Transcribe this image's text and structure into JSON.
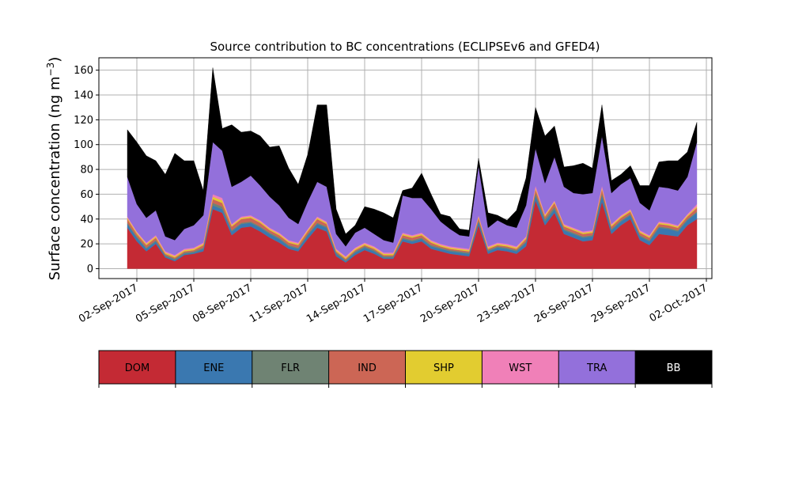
{
  "chart_data": {
    "type": "area",
    "stacked": true,
    "title": "Source contribution to BC concentrations (ECLIPSEv6 and GFED4)",
    "ylabel": "Surface concentration (ng m",
    "ylabel_sup": "−3",
    "ylabel_close": ")",
    "xlabel": "",
    "ylim": [
      -8,
      170
    ],
    "xlim": [
      "2017-08-31T00:00",
      "2017-10-02T07:00"
    ],
    "grid": true,
    "yticks": [
      0,
      20,
      40,
      60,
      80,
      100,
      120,
      140,
      160
    ],
    "xticks": [
      {
        "date": "2017-09-02",
        "label": "02-Sep-2017"
      },
      {
        "date": "2017-09-05",
        "label": "05-Sep-2017"
      },
      {
        "date": "2017-09-08",
        "label": "08-Sep-2017"
      },
      {
        "date": "2017-09-11",
        "label": "11-Sep-2017"
      },
      {
        "date": "2017-09-14",
        "label": "14-Sep-2017"
      },
      {
        "date": "2017-09-17",
        "label": "17-Sep-2017"
      },
      {
        "date": "2017-09-20",
        "label": "20-Sep-2017"
      },
      {
        "date": "2017-09-23",
        "label": "23-Sep-2017"
      },
      {
        "date": "2017-09-26",
        "label": "26-Sep-2017"
      },
      {
        "date": "2017-09-29",
        "label": "29-Sep-2017"
      },
      {
        "date": "2017-10-02",
        "label": "02-Oct-2017"
      }
    ],
    "x": [
      "2017-09-01T12:00",
      "2017-09-02T00:00",
      "2017-09-02T12:00",
      "2017-09-03T00:00",
      "2017-09-03T12:00",
      "2017-09-04T00:00",
      "2017-09-04T12:00",
      "2017-09-05T00:00",
      "2017-09-05T12:00",
      "2017-09-06T00:00",
      "2017-09-06T12:00",
      "2017-09-07T00:00",
      "2017-09-07T12:00",
      "2017-09-08T00:00",
      "2017-09-08T12:00",
      "2017-09-09T00:00",
      "2017-09-09T12:00",
      "2017-09-10T00:00",
      "2017-09-10T12:00",
      "2017-09-11T00:00",
      "2017-09-11T12:00",
      "2017-09-12T00:00",
      "2017-09-12T12:00",
      "2017-09-13T00:00",
      "2017-09-13T12:00",
      "2017-09-14T00:00",
      "2017-09-14T12:00",
      "2017-09-15T00:00",
      "2017-09-15T12:00",
      "2017-09-16T00:00",
      "2017-09-16T12:00",
      "2017-09-17T00:00",
      "2017-09-17T12:00",
      "2017-09-18T00:00",
      "2017-09-18T12:00",
      "2017-09-19T00:00",
      "2017-09-19T12:00",
      "2017-09-20T00:00",
      "2017-09-20T12:00",
      "2017-09-21T00:00",
      "2017-09-21T12:00",
      "2017-09-22T00:00",
      "2017-09-22T12:00",
      "2017-09-23T00:00",
      "2017-09-23T12:00",
      "2017-09-24T00:00",
      "2017-09-24T12:00",
      "2017-09-25T00:00",
      "2017-09-25T12:00",
      "2017-09-26T00:00",
      "2017-09-26T12:00",
      "2017-09-27T00:00",
      "2017-09-27T12:00",
      "2017-09-28T00:00",
      "2017-09-28T12:00",
      "2017-09-29T00:00",
      "2017-09-29T12:00",
      "2017-09-30T00:00",
      "2017-09-30T12:00",
      "2017-10-01T00:00",
      "2017-10-01T12:00"
    ],
    "series": [
      {
        "name": "DOM",
        "color": "#c42a34",
        "values": [
          33,
          22,
          14,
          20,
          9,
          6,
          11,
          12,
          14,
          48,
          45,
          27,
          33,
          34,
          30,
          25,
          21,
          16,
          14,
          24,
          33,
          30,
          10,
          5,
          11,
          15,
          12,
          8,
          8,
          22,
          20,
          22,
          16,
          14,
          12,
          11,
          10,
          35,
          12,
          15,
          14,
          12,
          18,
          55,
          35,
          45,
          28,
          25,
          22,
          23,
          54,
          28,
          35,
          40,
          23,
          19,
          28,
          27,
          26,
          35,
          40
        ]
      },
      {
        "name": "ENE",
        "color": "#3a78b0",
        "values": [
          3,
          3,
          2,
          2,
          1,
          1,
          1,
          1,
          2,
          3,
          3,
          3,
          3,
          3,
          3,
          3,
          3,
          2,
          2,
          3,
          3,
          3,
          2,
          1,
          2,
          2,
          2,
          1,
          1,
          2,
          2,
          2,
          2,
          2,
          2,
          2,
          2,
          3,
          2,
          2,
          2,
          2,
          3,
          4,
          3,
          3,
          3,
          3,
          3,
          3,
          5,
          3,
          3,
          3,
          3,
          3,
          5,
          5,
          4,
          4,
          5
        ]
      },
      {
        "name": "FLR",
        "color": "#6f8373",
        "values": [
          1,
          1,
          1,
          1,
          1,
          1,
          1,
          1,
          1,
          2,
          2,
          1,
          1,
          1,
          1,
          1,
          1,
          1,
          1,
          1,
          1,
          1,
          1,
          1,
          1,
          1,
          1,
          1,
          1,
          1,
          1,
          1,
          1,
          1,
          1,
          1,
          1,
          1,
          1,
          1,
          1,
          1,
          1,
          2,
          2,
          2,
          1,
          1,
          1,
          1,
          2,
          1,
          1,
          1,
          1,
          1,
          1,
          1,
          1,
          1,
          1
        ]
      },
      {
        "name": "IND",
        "color": "#cc6655",
        "values": [
          3,
          2,
          2,
          2,
          1,
          1,
          1,
          1,
          2,
          3,
          3,
          3,
          3,
          3,
          3,
          2,
          2,
          2,
          2,
          2,
          3,
          2,
          1,
          1,
          1,
          1,
          1,
          1,
          1,
          2,
          2,
          2,
          2,
          1,
          1,
          1,
          1,
          2,
          1,
          1,
          1,
          1,
          2,
          3,
          2,
          3,
          2,
          2,
          2,
          2,
          3,
          2,
          2,
          2,
          2,
          2,
          2,
          2,
          2,
          2,
          3
        ]
      },
      {
        "name": "SHP",
        "color": "#e2cc30",
        "values": [
          1,
          1,
          1,
          1,
          1,
          1,
          1,
          1,
          1,
          2,
          2,
          1,
          1,
          1,
          1,
          1,
          1,
          1,
          1,
          1,
          1,
          1,
          1,
          1,
          1,
          1,
          1,
          1,
          1,
          1,
          1,
          1,
          1,
          1,
          1,
          1,
          1,
          1,
          1,
          1,
          1,
          1,
          1,
          1,
          1,
          1,
          1,
          1,
          1,
          1,
          1,
          1,
          1,
          1,
          1,
          1,
          1,
          1,
          1,
          1,
          1
        ]
      },
      {
        "name": "WST",
        "color": "#f080b8",
        "values": [
          1,
          1,
          1,
          1,
          1,
          1,
          1,
          1,
          1,
          2,
          2,
          1,
          1,
          1,
          1,
          1,
          1,
          1,
          1,
          1,
          1,
          1,
          1,
          1,
          1,
          1,
          1,
          1,
          1,
          1,
          1,
          1,
          1,
          1,
          1,
          1,
          1,
          1,
          1,
          1,
          1,
          1,
          1,
          2,
          1,
          1,
          1,
          1,
          1,
          1,
          2,
          1,
          1,
          1,
          1,
          1,
          1,
          1,
          1,
          1,
          2
        ]
      },
      {
        "name": "TRA",
        "color": "#9370db",
        "values": [
          32,
          22,
          20,
          20,
          12,
          12,
          16,
          18,
          22,
          42,
          38,
          30,
          28,
          32,
          28,
          25,
          22,
          18,
          15,
          22,
          28,
          28,
          12,
          8,
          12,
          12,
          10,
          10,
          8,
          30,
          30,
          28,
          25,
          18,
          14,
          10,
          10,
          40,
          15,
          18,
          15,
          15,
          25,
          30,
          25,
          35,
          30,
          28,
          30,
          30,
          40,
          25,
          25,
          25,
          22,
          20,
          28,
          28,
          28,
          30,
          50
        ]
      },
      {
        "name": "BB",
        "color": "#000000",
        "values": [
          38,
          50,
          50,
          40,
          50,
          70,
          55,
          52,
          20,
          60,
          18,
          50,
          40,
          36,
          40,
          40,
          48,
          40,
          32,
          38,
          62,
          66,
          20,
          10,
          6,
          17,
          20,
          22,
          20,
          4,
          8,
          20,
          12,
          6,
          10,
          5,
          5,
          6,
          12,
          4,
          4,
          14,
          22,
          33,
          38,
          25,
          16,
          22,
          25,
          20,
          25,
          10,
          8,
          10,
          14,
          20,
          20,
          22,
          24,
          20,
          16
        ]
      }
    ]
  },
  "legend": {
    "placement": "below-plot",
    "items": [
      {
        "label": "DOM",
        "color": "#c42a34",
        "text_color": "#000000"
      },
      {
        "label": "ENE",
        "color": "#3a78b0",
        "text_color": "#000000"
      },
      {
        "label": "FLR",
        "color": "#6f8373",
        "text_color": "#000000"
      },
      {
        "label": "IND",
        "color": "#cc6655",
        "text_color": "#000000"
      },
      {
        "label": "SHP",
        "color": "#e2cc30",
        "text_color": "#000000"
      },
      {
        "label": "WST",
        "color": "#f080b8",
        "text_color": "#000000"
      },
      {
        "label": "TRA",
        "color": "#9370db",
        "text_color": "#000000"
      },
      {
        "label": "BB",
        "color": "#000000",
        "text_color": "#ffffff"
      }
    ]
  },
  "colors": {
    "grid": "#b0b0b0",
    "axis": "#000000",
    "background": "#ffffff"
  }
}
